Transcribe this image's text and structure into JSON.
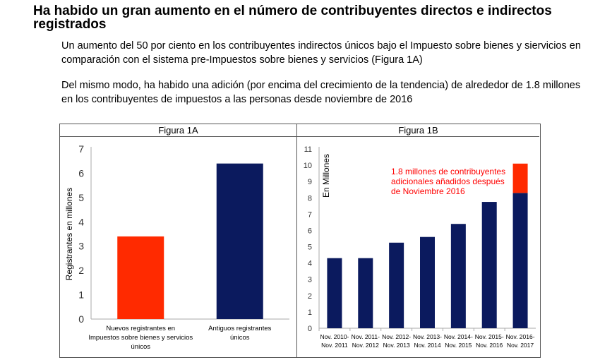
{
  "header": {
    "title": "Ha habido un gran aumento en el número de contribuyentes directos e indirectos registrados"
  },
  "paragraphs": [
    "Un aumento del 50 por ciento en los contribuyentes indirectos únicos bajo el Impuesto sobre bienes y siervicios en comparación con el sistema pre-Impuestos sobre bienes y servicios (Figura 1A)",
    "Del mismo modo, ha habido una adición (por encima del crecimiento de la tendencia) de alrededor de 1.8 millones en los contribuyentes de impuestos a las personas desde noviembre de 2016"
  ],
  "colors": {
    "red": "#ff2a00",
    "navy": "#0b1a5e",
    "annotation": "#ff0000"
  },
  "chart_data": [
    {
      "type": "bar",
      "title": "Figura 1A",
      "ylabel": "Registrantes en millones",
      "xlabel": "",
      "ylim": [
        0,
        7
      ],
      "yticks": [
        0,
        1,
        2,
        3,
        4,
        5,
        6,
        7
      ],
      "grid": false,
      "categories": [
        [
          "Nuevos registrantes en",
          "Impuestos sobre bienes y servicios",
          "únicos"
        ],
        [
          "Antiguos registrantes",
          "únicos"
        ]
      ],
      "values": [
        3.4,
        6.4
      ],
      "colors": [
        "#ff2a00",
        "#0b1a5e"
      ]
    },
    {
      "type": "bar",
      "title": "Figura 1B",
      "ylabel": "En Millones",
      "xlabel": "",
      "ylim": [
        0,
        11
      ],
      "yticks": [
        0,
        1,
        2,
        3,
        4,
        5,
        6,
        7,
        8,
        9,
        10,
        11
      ],
      "grid": false,
      "stacked": true,
      "categories": [
        [
          "Nov. 2010-",
          "Nov. 2011"
        ],
        [
          "Nov. 2011-",
          "Nov. 2012"
        ],
        [
          "Nov. 2012-",
          "Nov. 2013"
        ],
        [
          "Nov. 2013-",
          "Nov. 2014"
        ],
        [
          "Nov. 2014-",
          "Nov. 2015"
        ],
        [
          "Nov. 2015-",
          "Nov. 2016"
        ],
        [
          "Nov. 2016-",
          "Nov. 2017"
        ]
      ],
      "series": [
        {
          "values": [
            4.3,
            4.3,
            5.25,
            5.6,
            6.4,
            7.75,
            8.3
          ],
          "color": "#0b1a5e"
        },
        {
          "values": [
            0,
            0,
            0,
            0,
            0,
            0,
            1.8
          ],
          "color": "#ff2a00"
        }
      ],
      "annotation": [
        "1.8 millones de contribuyentes",
        "adicionales añadidos después",
        "de Noviembre 2016"
      ]
    }
  ]
}
